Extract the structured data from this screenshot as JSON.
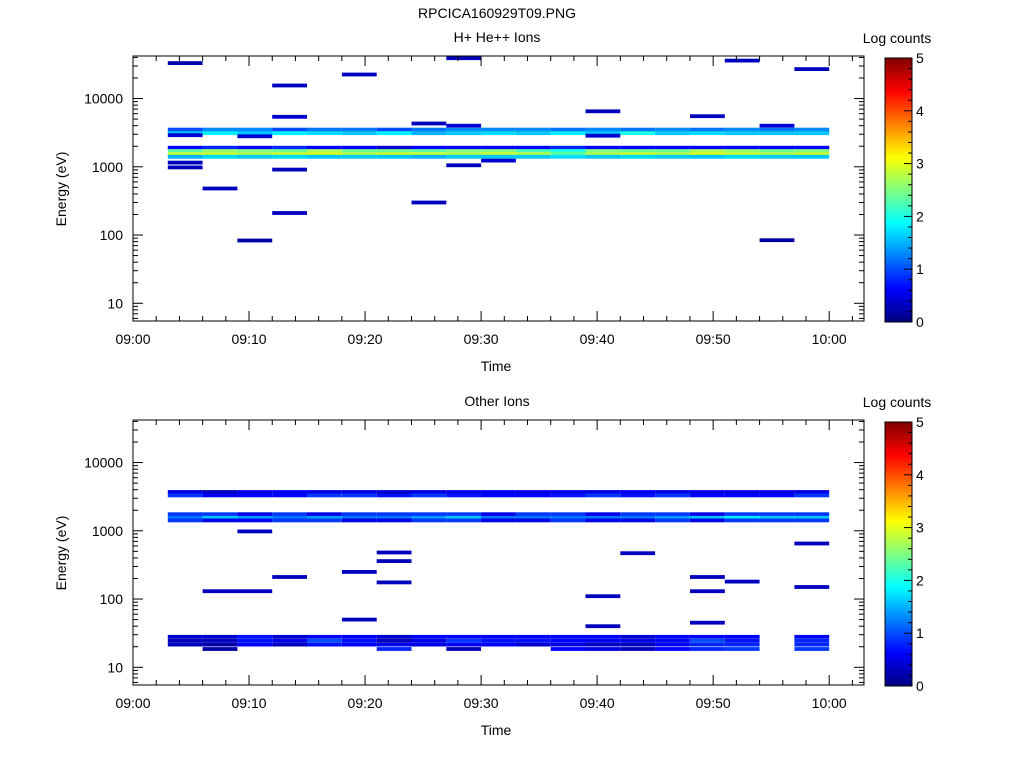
{
  "figure_title": "RPCICA160929T09.PNG",
  "chart_data": [
    {
      "type": "heatmap",
      "title": "H+ He++ Ions",
      "xlabel": "Time",
      "ylabel": "Energy (eV)",
      "x_ticks": [
        "09:00",
        "09:10",
        "09:20",
        "09:30",
        "09:40",
        "09:50",
        "10:00"
      ],
      "xlim_minutes": [
        0,
        63
      ],
      "y_ticks": [
        "10",
        "100",
        "1000",
        "10000"
      ],
      "y_scale": "log",
      "ylim": [
        5.5,
        42000
      ],
      "colorbar": {
        "label": "Log counts",
        "ticks": [
          "0",
          "1",
          "2",
          "3",
          "4",
          "5"
        ],
        "range": [
          0,
          5
        ]
      },
      "cells": [
        {
          "t0": 3,
          "t1": 6,
          "e": 33000,
          "log_counts": 0.2
        },
        {
          "t0": 3,
          "t1": 6,
          "e": 2900,
          "log_counts": 0.4
        },
        {
          "t0": 3,
          "t1": 6,
          "e": 1150,
          "log_counts": 0.3
        },
        {
          "t0": 3,
          "t1": 6,
          "e": 980,
          "log_counts": 0.3
        },
        {
          "t0": 6,
          "t1": 9,
          "e": 480,
          "log_counts": 0.3
        },
        {
          "t0": 9,
          "t1": 12,
          "e": 83,
          "log_counts": 0.2
        },
        {
          "t0": 9,
          "t1": 12,
          "e": 2800,
          "log_counts": 0.4
        },
        {
          "t0": 12,
          "t1": 15,
          "e": 15500,
          "log_counts": 0.3
        },
        {
          "t0": 12,
          "t1": 15,
          "e": 5400,
          "log_counts": 0.4
        },
        {
          "t0": 12,
          "t1": 15,
          "e": 910,
          "log_counts": 0.3
        },
        {
          "t0": 12,
          "t1": 15,
          "e": 210,
          "log_counts": 0.3
        },
        {
          "t0": 18,
          "t1": 21,
          "e": 22500,
          "log_counts": 0.3
        },
        {
          "t0": 24,
          "t1": 27,
          "e": 4300,
          "log_counts": 0.3
        },
        {
          "t0": 24,
          "t1": 27,
          "e": 300,
          "log_counts": 0.3
        },
        {
          "t0": 27,
          "t1": 30,
          "e": 39000,
          "log_counts": 0.3
        },
        {
          "t0": 27,
          "t1": 30,
          "e": 4000,
          "log_counts": 0.4
        },
        {
          "t0": 27,
          "t1": 30,
          "e": 1050,
          "log_counts": 0.3
        },
        {
          "t0": 30,
          "t1": 33,
          "e": 1230,
          "log_counts": 0.4
        },
        {
          "t0": 39,
          "t1": 42,
          "e": 6500,
          "log_counts": 0.3
        },
        {
          "t0": 39,
          "t1": 42,
          "e": 2850,
          "log_counts": 0.4
        },
        {
          "t0": 48,
          "t1": 51,
          "e": 5500,
          "log_counts": 0.3
        },
        {
          "t0": 51,
          "t1": 54,
          "e": 36000,
          "log_counts": 0.3
        },
        {
          "t0": 54,
          "t1": 57,
          "e": 84,
          "log_counts": 0.2
        },
        {
          "t0": 54,
          "t1": 57,
          "e": 4000,
          "log_counts": 0.4
        },
        {
          "t0": 57,
          "t1": 60,
          "e": 27000,
          "log_counts": 0.3
        }
      ],
      "bands": [
        {
          "t0": 3,
          "t1": 60,
          "e": 3500,
          "log_counts": [
            1.0,
            1.3,
            1.3,
            1.0,
            1.2,
            1.2,
            1.0,
            1.2,
            1.3,
            1.3,
            1.3,
            1.2,
            1.3,
            1.2,
            1.3,
            1.2,
            1.3,
            1.2,
            1.3
          ]
        },
        {
          "t0": 3,
          "t1": 60,
          "e": 3100,
          "log_counts": [
            1.6,
            1.8,
            1.6,
            1.8,
            1.7,
            1.6,
            1.8,
            1.5,
            1.6,
            1.7,
            1.6,
            1.8,
            1.6,
            2.0,
            1.6,
            1.7,
            1.6,
            1.6,
            1.6
          ]
        },
        {
          "t0": 3,
          "t1": 60,
          "e": 1900,
          "log_counts": [
            0.6,
            0.8,
            0.6,
            0.8,
            0.6,
            0.6,
            0.4,
            0.6,
            0.6,
            0.6,
            0.6,
            0.8,
            0.6,
            0.6,
            0.6,
            0.6,
            0.6,
            0.6,
            0.6
          ]
        },
        {
          "t0": 3,
          "t1": 60,
          "e": 1700,
          "log_counts": [
            2.3,
            2.6,
            2.5,
            2.4,
            2.7,
            2.4,
            2.4,
            2.3,
            2.5,
            2.5,
            2.2,
            2.0,
            2.5,
            2.4,
            2.4,
            2.7,
            2.6,
            2.4,
            2.5
          ]
        },
        {
          "t0": 3,
          "t1": 60,
          "e": 1550,
          "log_counts": [
            2.8,
            2.8,
            2.7,
            2.8,
            2.9,
            2.7,
            2.8,
            2.8,
            2.7,
            2.8,
            2.7,
            2.3,
            2.7,
            2.8,
            2.7,
            2.9,
            2.8,
            2.7,
            2.8
          ]
        },
        {
          "t0": 3,
          "t1": 60,
          "e": 1400,
          "log_counts": [
            1.5,
            1.7,
            1.6,
            1.7,
            1.6,
            1.6,
            1.6,
            1.5,
            1.6,
            1.6,
            1.6,
            1.7,
            1.6,
            1.7,
            1.6,
            1.6,
            1.7,
            1.6,
            1.6
          ]
        }
      ]
    },
    {
      "type": "heatmap",
      "title": "Other Ions",
      "xlabel": "Time",
      "ylabel": "Energy (eV)",
      "x_ticks": [
        "09:00",
        "09:10",
        "09:20",
        "09:30",
        "09:40",
        "09:50",
        "10:00"
      ],
      "xlim_minutes": [
        0,
        63
      ],
      "y_ticks": [
        "10",
        "100",
        "1000",
        "10000"
      ],
      "y_scale": "log",
      "ylim": [
        5.5,
        42000
      ],
      "colorbar": {
        "label": "Log counts",
        "ticks": [
          "0",
          "1",
          "2",
          "3",
          "4",
          "5"
        ],
        "range": [
          0,
          5
        ]
      },
      "cells": [
        {
          "t0": 9,
          "t1": 12,
          "e": 980,
          "log_counts": 0.3
        },
        {
          "t0": 6,
          "t1": 12,
          "e": 130,
          "log_counts": 0.3
        },
        {
          "t0": 12,
          "t1": 15,
          "e": 210,
          "log_counts": 0.3
        },
        {
          "t0": 18,
          "t1": 21,
          "e": 250,
          "log_counts": 0.3
        },
        {
          "t0": 18,
          "t1": 21,
          "e": 50,
          "log_counts": 0.3
        },
        {
          "t0": 21,
          "t1": 24,
          "e": 480,
          "log_counts": 0.3
        },
        {
          "t0": 21,
          "t1": 24,
          "e": 360,
          "log_counts": 0.3
        },
        {
          "t0": 21,
          "t1": 24,
          "e": 175,
          "log_counts": 0.3
        },
        {
          "t0": 42,
          "t1": 45,
          "e": 470,
          "log_counts": 0.3
        },
        {
          "t0": 39,
          "t1": 42,
          "e": 110,
          "log_counts": 0.3
        },
        {
          "t0": 39,
          "t1": 42,
          "e": 40,
          "log_counts": 0.3
        },
        {
          "t0": 48,
          "t1": 51,
          "e": 210,
          "log_counts": 0.3
        },
        {
          "t0": 48,
          "t1": 51,
          "e": 130,
          "log_counts": 0.3
        },
        {
          "t0": 48,
          "t1": 51,
          "e": 45,
          "log_counts": 0.3
        },
        {
          "t0": 51,
          "t1": 54,
          "e": 180,
          "log_counts": 0.3
        },
        {
          "t0": 57,
          "t1": 60,
          "e": 650,
          "log_counts": 0.3
        },
        {
          "t0": 57,
          "t1": 60,
          "e": 150,
          "log_counts": 0.3
        }
      ],
      "bands": [
        {
          "t0": 3,
          "t1": 60,
          "e": 3700,
          "log_counts": [
            0.5,
            0.3,
            0.5,
            0.6,
            0.5,
            0.5,
            0.4,
            0.5,
            0.5,
            0.6,
            0.5,
            0.5,
            0.5,
            0.6,
            0.5,
            0.5,
            0.5,
            0.5,
            0.5
          ]
        },
        {
          "t0": 3,
          "t1": 60,
          "e": 3300,
          "log_counts": [
            0.9,
            0.6,
            0.6,
            0.6,
            0.9,
            0.9,
            0.7,
            0.9,
            0.7,
            0.6,
            0.6,
            0.7,
            0.9,
            0.7,
            0.9,
            0.6,
            0.6,
            0.6,
            0.9
          ]
        },
        {
          "t0": 3,
          "t1": 60,
          "e": 1750,
          "log_counts": [
            0.9,
            0.9,
            0.5,
            0.9,
            0.5,
            0.9,
            0.9,
            0.9,
            0.9,
            0.5,
            0.9,
            0.9,
            0.5,
            0.9,
            0.9,
            0.5,
            0.9,
            0.9,
            0.9
          ]
        },
        {
          "t0": 3,
          "t1": 60,
          "e": 1550,
          "log_counts": [
            1.2,
            1.6,
            1.4,
            1.2,
            1.4,
            1.2,
            1.2,
            1.4,
            1.6,
            1.2,
            1.2,
            1.2,
            1.2,
            1.2,
            1.4,
            1.6,
            1.8,
            1.6,
            1.6
          ]
        },
        {
          "t0": 3,
          "t1": 60,
          "e": 1420,
          "log_counts": [
            0.9,
            0.5,
            0.6,
            0.9,
            0.9,
            0.5,
            0.5,
            0.9,
            0.9,
            0.5,
            0.5,
            0.9,
            0.5,
            0.5,
            0.9,
            0.5,
            0.9,
            0.9,
            0.9
          ]
        },
        {
          "t0": 3,
          "t1": 60,
          "e": 28,
          "log_counts": [
            0.4,
            0.4,
            0.7,
            0.4,
            0.6,
            0.6,
            0.4,
            0.6,
            0.6,
            0.6,
            0.6,
            0.6,
            0.6,
            0.4,
            0.6,
            0.6,
            0.6,
            null,
            0.6
          ]
        },
        {
          "t0": 3,
          "t1": 60,
          "e": 24.5,
          "log_counts": [
            0.3,
            0.3,
            0.7,
            0.5,
            1.0,
            0.7,
            0.3,
            0.5,
            0.9,
            0.7,
            0.7,
            0.6,
            0.6,
            0.5,
            0.6,
            1.0,
            0.7,
            null,
            0.8
          ]
        },
        {
          "t0": 3,
          "t1": 60,
          "e": 21.5,
          "log_counts": [
            0.3,
            0.2,
            0.6,
            0.3,
            0.7,
            0.6,
            0.6,
            0.5,
            0.6,
            0.6,
            0.4,
            0.5,
            0.3,
            0.3,
            0.6,
            0.8,
            0.8,
            null,
            0.8
          ]
        },
        {
          "t0": 3,
          "t1": 60,
          "e": 18.5,
          "log_counts": [
            null,
            0.2,
            null,
            null,
            null,
            null,
            0.8,
            null,
            0.3,
            null,
            null,
            0.6,
            0.5,
            0.3,
            0.6,
            0.8,
            0.9,
            null,
            0.9
          ]
        }
      ]
    }
  ]
}
